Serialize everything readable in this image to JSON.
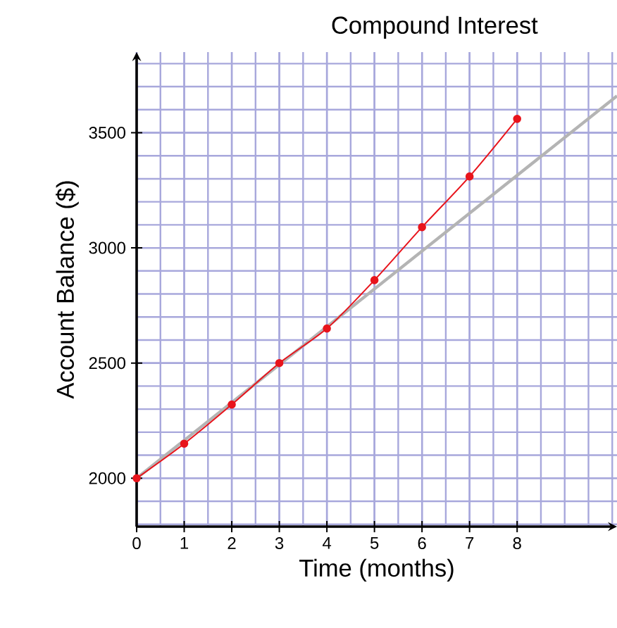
{
  "chart_data": {
    "type": "line",
    "title": "Compound Interest",
    "xlabel": "Time (months)",
    "ylabel": "Account Balance ($)",
    "xlim": [
      0,
      10.1
    ],
    "ylim": [
      1790,
      3850
    ],
    "xticks": [
      0,
      1,
      2,
      3,
      4,
      5,
      6,
      7,
      8
    ],
    "yticks": [
      2000,
      2500,
      3000,
      3500
    ],
    "grid": true,
    "series": [
      {
        "color": "#b4b4b4",
        "x": [
          0,
          10.1
        ],
        "values": [
          2000,
          3660
        ]
      },
      {
        "color": "#e8141c",
        "marker": "circle",
        "x": [
          0,
          1,
          2,
          3,
          4,
          5,
          6,
          7,
          8
        ],
        "values": [
          2000,
          2150,
          2320,
          2500,
          2650,
          2860,
          3090,
          3310,
          3560
        ]
      }
    ]
  }
}
